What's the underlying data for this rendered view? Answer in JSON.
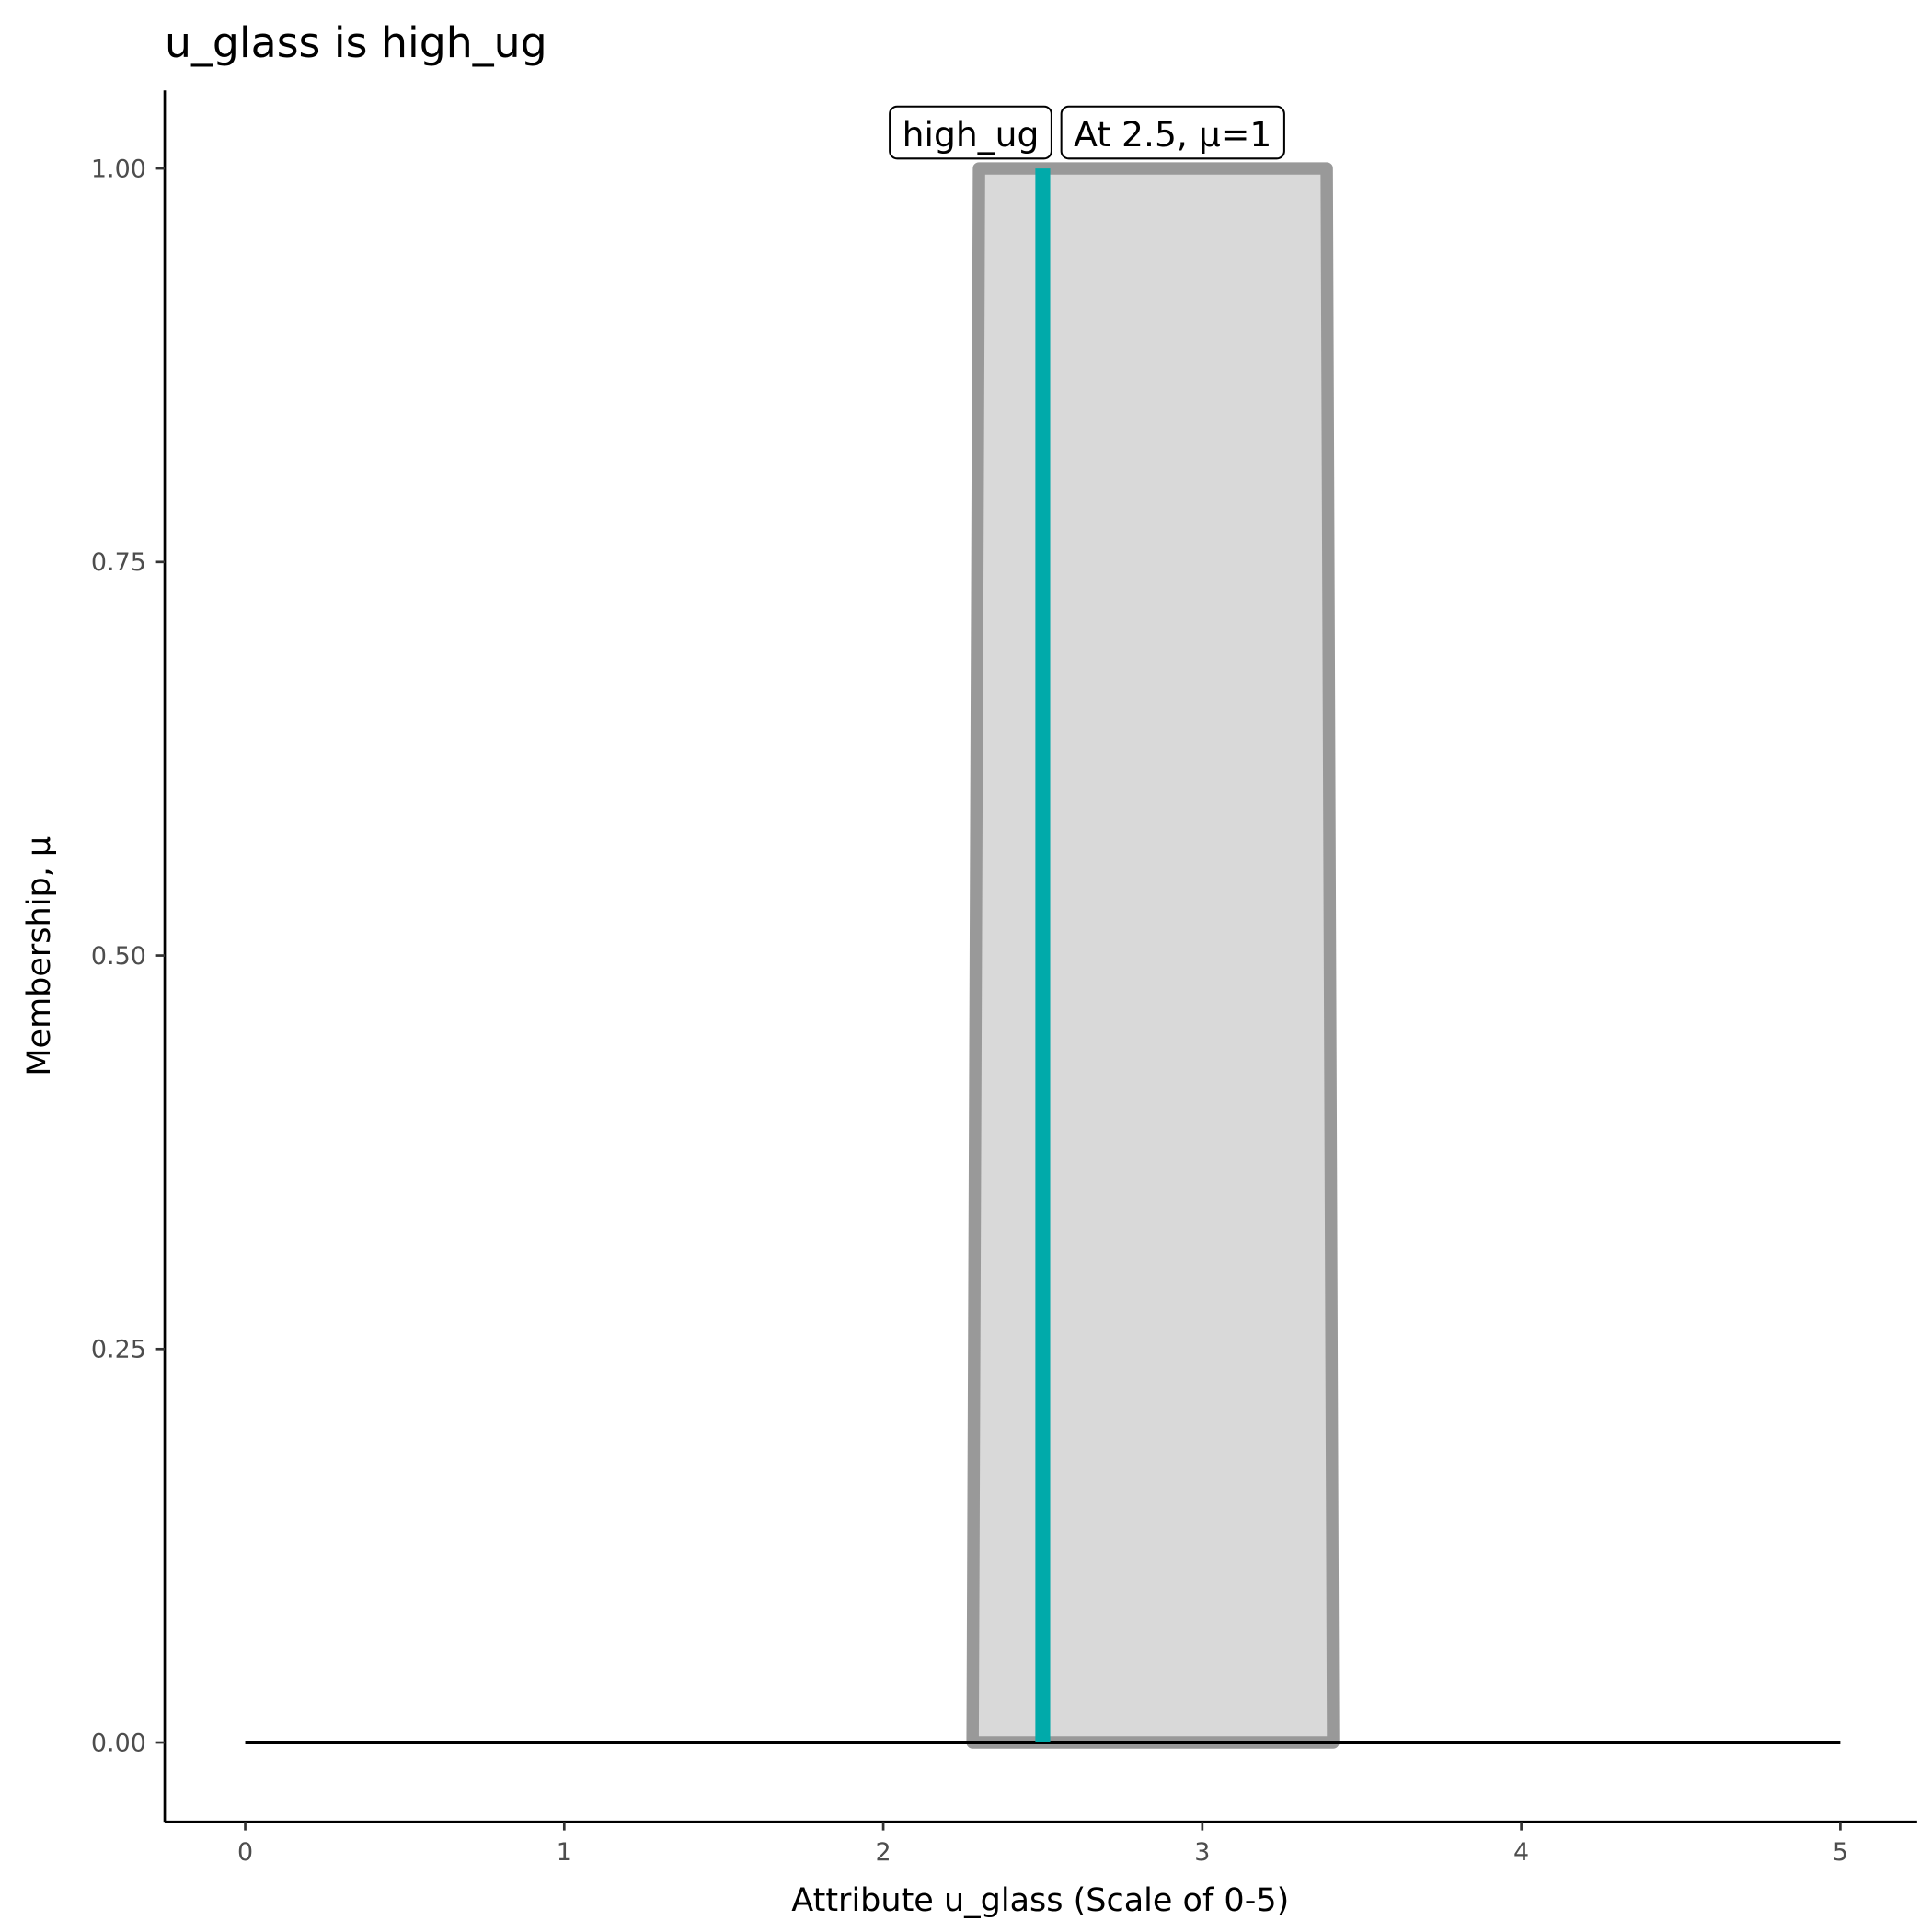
{
  "chart_data": {
    "type": "area",
    "title": "u_glass is high_ug",
    "xlabel": "Attribute u_glass (Scale of 0-5)",
    "ylabel": "Membership, μ",
    "xlim": [
      -0.25,
      5.25
    ],
    "ylim": [
      -0.05,
      1.05
    ],
    "x_ticks": [
      0,
      1,
      2,
      3,
      4,
      5
    ],
    "x_tick_labels": [
      "0",
      "1",
      "2",
      "3",
      "4",
      "5"
    ],
    "y_ticks": [
      0,
      0.25,
      0.5,
      0.75,
      1
    ],
    "y_tick_labels": [
      "0.00",
      "0.25",
      "0.50",
      "0.75",
      "1.00"
    ],
    "grid": false,
    "membership_function": {
      "name": "high_ug",
      "x": [
        2.28,
        2.3,
        3.39,
        3.41
      ],
      "y": [
        0,
        1,
        1,
        0
      ],
      "fill_color": "#d9d9d9",
      "line_color": "#999999"
    },
    "baseline": {
      "x": [
        0,
        5
      ],
      "y": [
        0,
        0
      ],
      "color": "#000000"
    },
    "marker": {
      "x": 2.5,
      "mu": 1,
      "color": "#00aaaa"
    },
    "labels": [
      {
        "text": "high_ug",
        "x": 2.5,
        "y": 1
      },
      {
        "text": "At 2.5, μ=1",
        "x": 2.5,
        "y": 1
      }
    ]
  }
}
